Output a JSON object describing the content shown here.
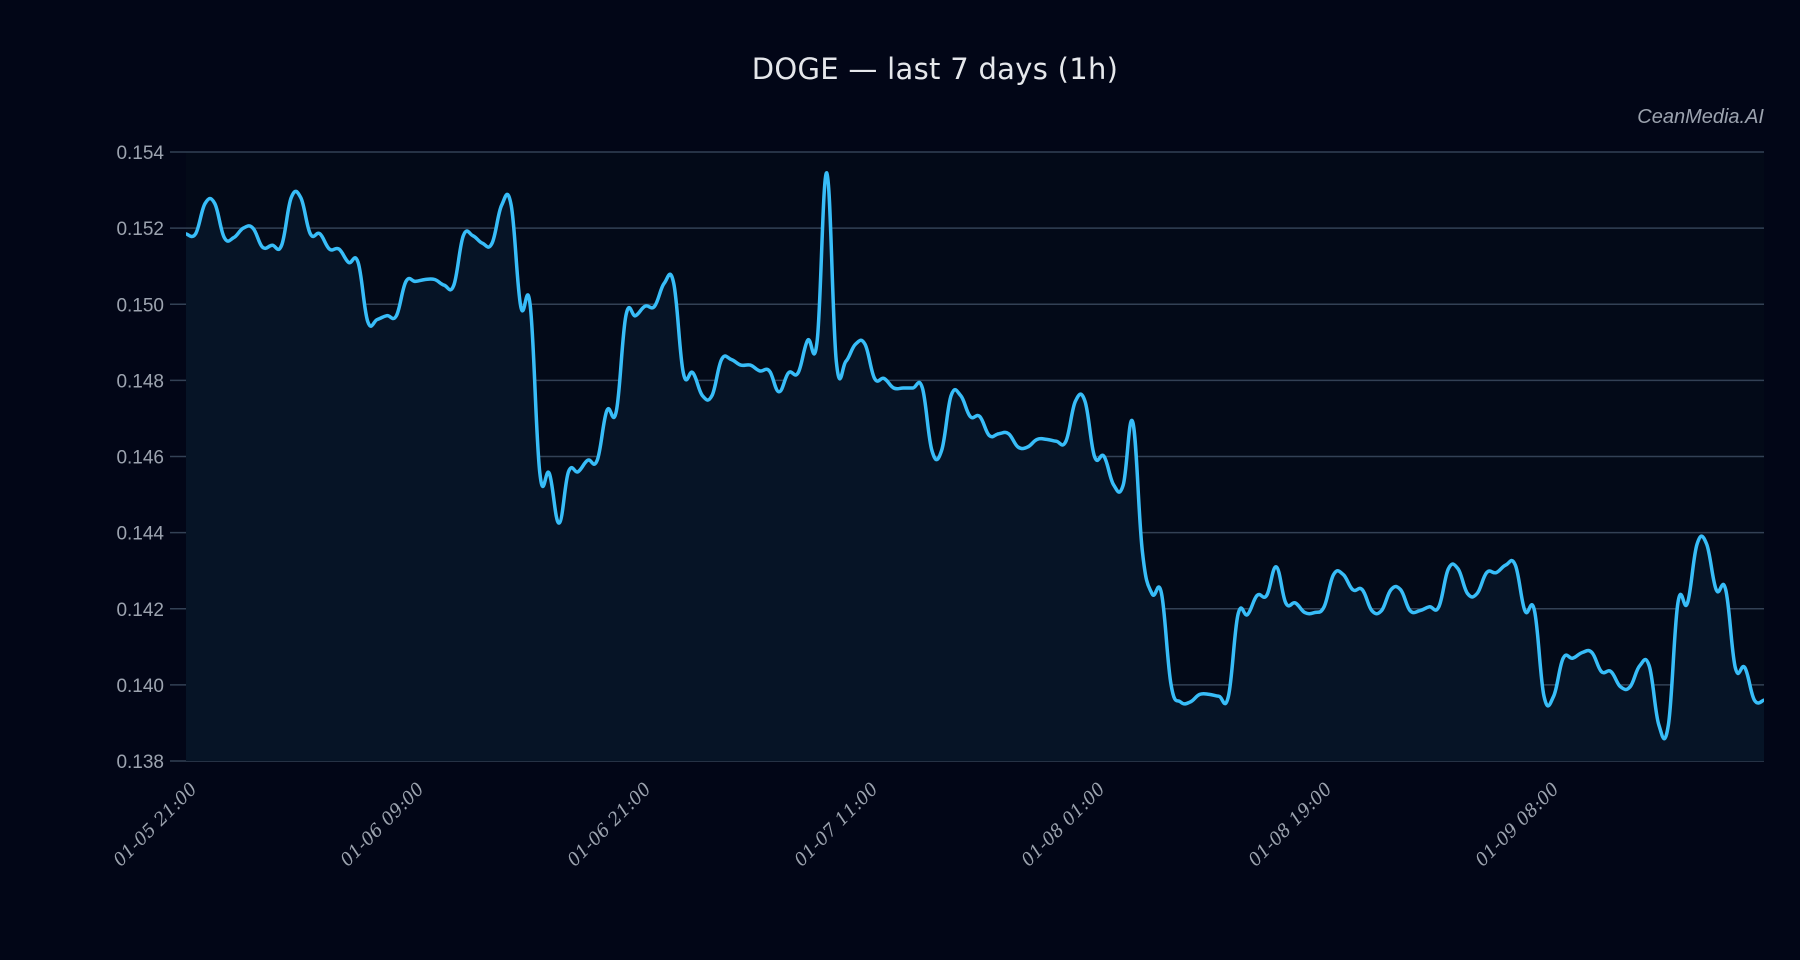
{
  "title": "DOGE — last 7 days (1h)",
  "watermark": "CeanMedia.AI",
  "colors": {
    "background": "#020617",
    "plot_fill": "#061426",
    "line": "#38bdf8",
    "grid": "#334155",
    "text": "#9ca3af",
    "title": "#e5e7eb"
  },
  "chart_data": {
    "type": "area",
    "title": "DOGE — last 7 days (1h)",
    "xlabel": "",
    "ylabel": "",
    "ylim": [
      0.138,
      0.154
    ],
    "yticks": [
      "0.138",
      "0.140",
      "0.142",
      "0.144",
      "0.146",
      "0.148",
      "0.150",
      "0.152",
      "0.154"
    ],
    "xticks": [
      "01-05 21:00",
      "01-06 09:00",
      "01-06 21:00",
      "01-07 11:00",
      "01-08 01:00",
      "01-08 19:00",
      "01-09 08:00"
    ],
    "grid": true,
    "legend": "none",
    "series": [
      {
        "name": "DOGE",
        "values": [
          0.15185,
          0.15185,
          0.15265,
          0.15265,
          0.15175,
          0.15175,
          0.152,
          0.152,
          0.1515,
          0.15155,
          0.15155,
          0.1528,
          0.1528,
          0.15185,
          0.15185,
          0.15145,
          0.15145,
          0.1511,
          0.1511,
          0.14955,
          0.1496,
          0.1497,
          0.1497,
          0.1506,
          0.1506,
          0.15065,
          0.15065,
          0.1505,
          0.1505,
          0.1518,
          0.1518,
          0.1516,
          0.1516,
          0.1526,
          0.1526,
          0.14995,
          0.14995,
          0.14555,
          0.14555,
          0.14425,
          0.1456,
          0.1456,
          0.1459,
          0.1459,
          0.1472,
          0.1472,
          0.1497,
          0.1497,
          0.14995,
          0.14995,
          0.15055,
          0.15055,
          0.1482,
          0.1482,
          0.1476,
          0.1476,
          0.14855,
          0.14855,
          0.1484,
          0.1484,
          0.14825,
          0.14825,
          0.1477,
          0.1482,
          0.1482,
          0.14905,
          0.14905,
          0.15345,
          0.1485,
          0.1485,
          0.14895,
          0.14895,
          0.14805,
          0.14805,
          0.1478,
          0.1478,
          0.1478,
          0.1478,
          0.14615,
          0.14615,
          0.1476,
          0.1476,
          0.14705,
          0.14705,
          0.14655,
          0.1466,
          0.1466,
          0.14625,
          0.14625,
          0.14645,
          0.14645,
          0.1464,
          0.1464,
          0.14745,
          0.14745,
          0.146,
          0.146,
          0.14525,
          0.14525,
          0.1469,
          0.1435,
          0.1424,
          0.1424,
          0.14,
          0.13955,
          0.13955,
          0.13975,
          0.13975,
          0.1397,
          0.1397,
          0.14185,
          0.14185,
          0.14235,
          0.14235,
          0.1431,
          0.14215,
          0.14215,
          0.1419,
          0.1419,
          0.14205,
          0.1429,
          0.1429,
          0.1425,
          0.1425,
          0.14195,
          0.14195,
          0.1425,
          0.1425,
          0.14195,
          0.14195,
          0.14205,
          0.14205,
          0.14305,
          0.14305,
          0.1424,
          0.1424,
          0.14295,
          0.14295,
          0.14315,
          0.14315,
          0.14195,
          0.14195,
          0.1397,
          0.1397,
          0.1407,
          0.1407,
          0.14085,
          0.14085,
          0.14035,
          0.14035,
          0.13995,
          0.13995,
          0.1405,
          0.1405,
          0.13895,
          0.13895,
          0.14215,
          0.14215,
          0.1437,
          0.1437,
          0.1425,
          0.1425,
          0.14045,
          0.14045,
          0.1396,
          0.1396
        ]
      }
    ]
  }
}
